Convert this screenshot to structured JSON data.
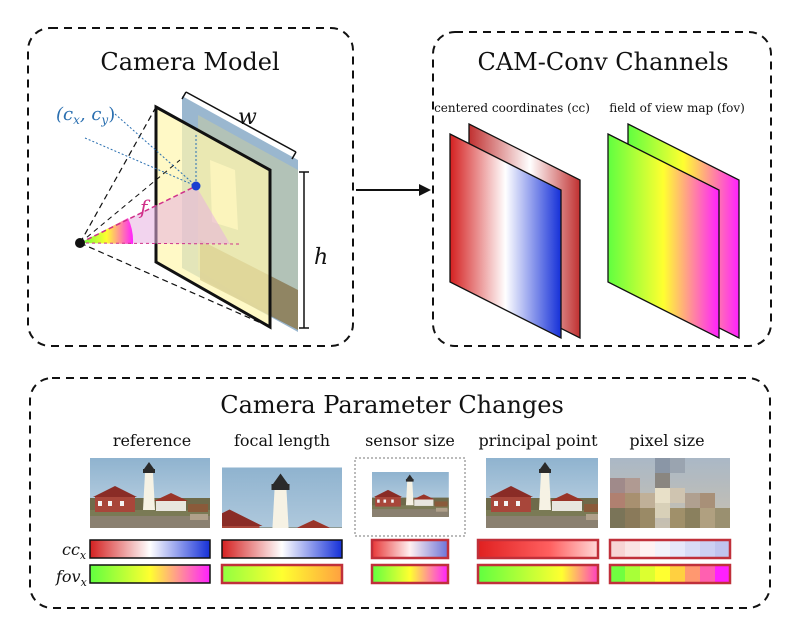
{
  "panels": {
    "camera_model": {
      "title": "Camera Model"
    },
    "camconv": {
      "title": "CAM-Conv Channels",
      "cc_label": "centered coordinates (cc)",
      "fov_label": "field of view map (fov)"
    },
    "changes": {
      "title": "Camera Parameter Changes",
      "columns": [
        "reference",
        "focal length",
        "sensor size",
        "principal point",
        "pixel size"
      ]
    }
  },
  "symbols": {
    "principal_point": "(cx, cy)",
    "principal_point_base": "(c",
    "sub_x": "x",
    "comma": ", c",
    "sub_y": "y",
    "close": ")",
    "focal": "f",
    "width": "w",
    "height": "h",
    "cc_row": "cc",
    "fov_row": "fov",
    "row_sub": "x"
  },
  "colors": {
    "red": "#d42020",
    "blue": "#1530d8",
    "green": "#60ff40",
    "yellow": "#ffff30",
    "magenta": "#ff20ff",
    "dash": "#111111",
    "pp_blue": "#2a6fb0",
    "focal_magenta": "#d0308a"
  }
}
